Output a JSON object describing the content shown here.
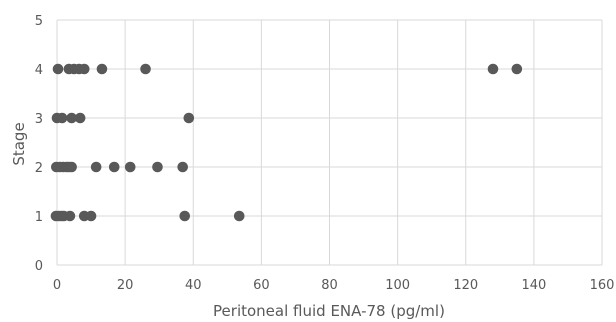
{
  "chart_data": {
    "type": "scatter",
    "title": "",
    "xlabel": "Peritoneal fluid ENA-78 (pg/ml)",
    "ylabel": "Stage",
    "xlim": [
      0,
      160
    ],
    "ylim": [
      0,
      5
    ],
    "xticks": [
      "0",
      "20",
      "40",
      "60",
      "80",
      "100",
      "120",
      "140",
      "160"
    ],
    "yticks": [
      "0",
      "1",
      "2",
      "3",
      "4",
      "5"
    ],
    "grid": "vertical and horizontal",
    "legend": "none",
    "colors": {
      "point": "#595959",
      "grid": "#d9d9d9",
      "text": "#595959"
    },
    "series": [
      {
        "points": [
          {
            "x": 0.3,
            "y": 4
          },
          {
            "x": 3.5,
            "y": 4
          },
          {
            "x": 5.0,
            "y": 4
          },
          {
            "x": 6.5,
            "y": 4
          },
          {
            "x": 8.0,
            "y": 4
          },
          {
            "x": 13.2,
            "y": 4
          },
          {
            "x": 26.0,
            "y": 4
          },
          {
            "x": 128.0,
            "y": 4
          },
          {
            "x": 135.0,
            "y": 4
          },
          {
            "x": 0.0,
            "y": 3
          },
          {
            "x": 1.5,
            "y": 3
          },
          {
            "x": 4.3,
            "y": 3
          },
          {
            "x": 6.8,
            "y": 3
          },
          {
            "x": 38.7,
            "y": 3
          },
          {
            "x": -0.2,
            "y": 2
          },
          {
            "x": 0.8,
            "y": 2
          },
          {
            "x": 1.8,
            "y": 2
          },
          {
            "x": 2.8,
            "y": 2
          },
          {
            "x": 3.5,
            "y": 2
          },
          {
            "x": 4.3,
            "y": 2
          },
          {
            "x": 11.5,
            "y": 2
          },
          {
            "x": 16.8,
            "y": 2
          },
          {
            "x": 21.5,
            "y": 2
          },
          {
            "x": 29.5,
            "y": 2
          },
          {
            "x": 36.9,
            "y": 2
          },
          {
            "x": -0.3,
            "y": 1
          },
          {
            "x": 0.5,
            "y": 1
          },
          {
            "x": 1.3,
            "y": 1
          },
          {
            "x": 2.0,
            "y": 1
          },
          {
            "x": 3.8,
            "y": 1
          },
          {
            "x": 8.0,
            "y": 1
          },
          {
            "x": 10.0,
            "y": 1
          },
          {
            "x": 37.5,
            "y": 1
          },
          {
            "x": 53.5,
            "y": 1
          }
        ]
      }
    ]
  }
}
